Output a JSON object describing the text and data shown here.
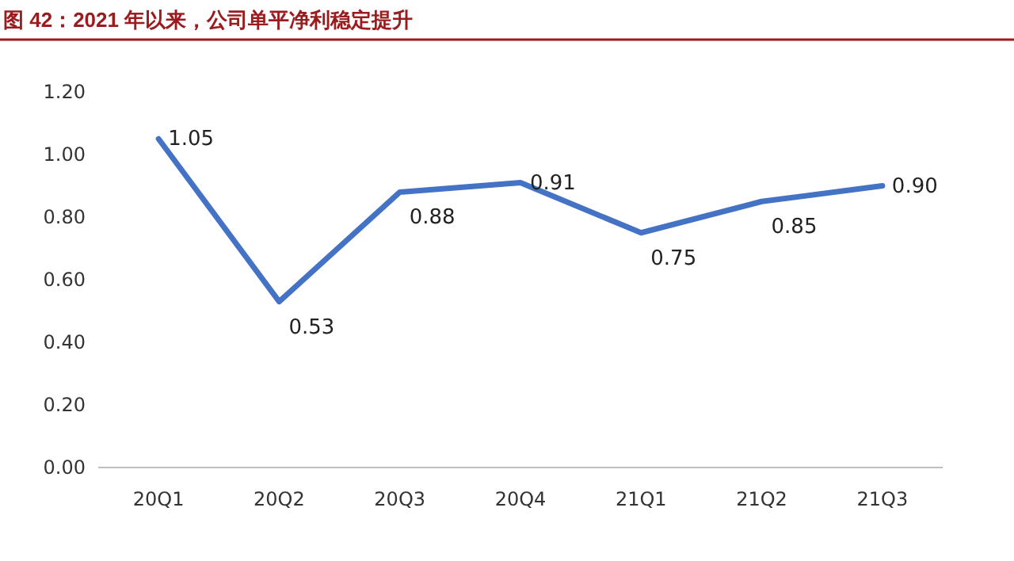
{
  "chart_data": {
    "type": "line",
    "title": "图 42：2021 年以来，公司单平净利稳定提升",
    "categories": [
      "20Q1",
      "20Q2",
      "20Q3",
      "20Q4",
      "21Q1",
      "21Q2",
      "21Q3"
    ],
    "series": [
      {
        "color": "#4472c4",
        "values": [
          1.05,
          0.53,
          0.88,
          0.91,
          0.75,
          0.85,
          0.9
        ]
      }
    ],
    "value_labels": [
      "1.05",
      "0.53",
      "0.88",
      "0.91",
      "0.75",
      "0.85",
      "0.90"
    ],
    "ylim": [
      0,
      1.2
    ],
    "yticks": [
      {
        "value": 0,
        "label": "0.00"
      },
      {
        "value": 0.2,
        "label": "0.20"
      },
      {
        "value": 0.4,
        "label": "0.40"
      },
      {
        "value": 0.6,
        "label": "0.60"
      },
      {
        "value": 0.8,
        "label": "0.80"
      },
      {
        "value": 1.0,
        "label": "1.00"
      },
      {
        "value": 1.2,
        "label": "1.20"
      }
    ],
    "grid": false,
    "marker": "none",
    "line_style": "solid"
  }
}
